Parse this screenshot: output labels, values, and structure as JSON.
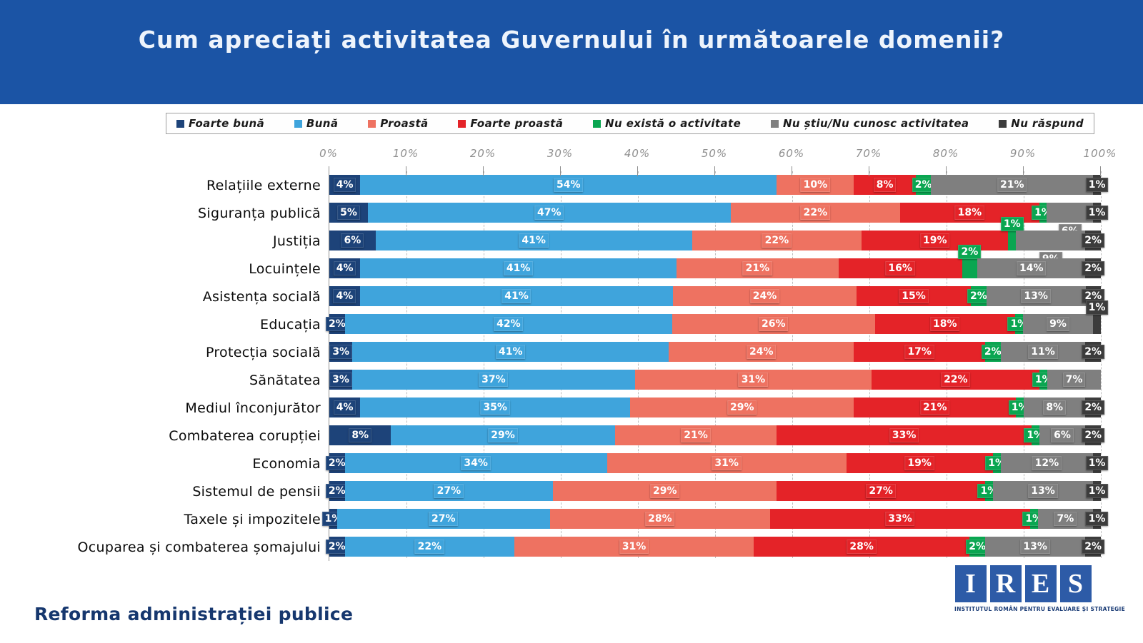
{
  "header": {
    "title": "Cum apreciați activitatea Guvernului în următoarele domenii?"
  },
  "chart_data": {
    "type": "bar",
    "orientation": "horizontal",
    "stacked": true,
    "title": "Cum apreciați activitatea Guvernului în următoarele domenii?",
    "legend_position": "top",
    "grid": "dotted-vertical",
    "xlim": [
      0,
      100
    ],
    "x_ticks": [
      "0%",
      "10%",
      "20%",
      "30%",
      "40%",
      "50%",
      "60%",
      "70%",
      "80%",
      "90%",
      "100%"
    ],
    "series_names": [
      "Foarte bună",
      "Bună",
      "Proastă",
      "Foarte proastă",
      "Nu există o activitate",
      "Nu știu/Nu cunosc activitatea",
      "Nu răspund"
    ],
    "series_colors": [
      "#1d4379",
      "#3fa4dc",
      "#ee7261",
      "#e42328",
      "#0aa651",
      "#7f7f7f",
      "#3c3c3c"
    ],
    "categories": [
      "Relațiile externe",
      "Siguranța publică",
      "Justiția",
      "Locuințele",
      "Asistența socială",
      "Educația",
      "Protecția socială",
      "Sănătatea",
      "Mediul înconjurător",
      "Combaterea corupției",
      "Economia",
      "Sistemul de pensii",
      "Taxele și impozitele",
      "Ocuparea și combaterea șomajului"
    ],
    "values": [
      [
        4,
        54,
        10,
        8,
        2,
        21,
        1
      ],
      [
        5,
        47,
        22,
        18,
        1,
        6,
        1
      ],
      [
        6,
        41,
        22,
        19,
        1,
        9,
        2
      ],
      [
        4,
        41,
        21,
        16,
        2,
        14,
        2
      ],
      [
        4,
        41,
        24,
        15,
        2,
        13,
        2
      ],
      [
        2,
        42,
        26,
        18,
        1,
        9,
        1
      ],
      [
        3,
        41,
        24,
        17,
        2,
        11,
        2
      ],
      [
        3,
        37,
        31,
        22,
        1,
        7,
        0
      ],
      [
        4,
        35,
        29,
        21,
        1,
        8,
        2
      ],
      [
        8,
        29,
        21,
        33,
        1,
        6,
        2
      ],
      [
        2,
        34,
        31,
        19,
        1,
        12,
        1
      ],
      [
        2,
        27,
        29,
        27,
        1,
        13,
        1
      ],
      [
        1,
        27,
        28,
        33,
        1,
        7,
        1
      ],
      [
        2,
        22,
        31,
        28,
        2,
        13,
        2
      ]
    ],
    "label_offsets": [
      [
        null,
        null,
        null,
        null,
        null,
        null,
        null
      ],
      [
        null,
        null,
        null,
        null,
        null,
        "down",
        null
      ],
      [
        null,
        null,
        null,
        null,
        "up",
        "down",
        null
      ],
      [
        null,
        null,
        null,
        null,
        "up",
        null,
        null
      ],
      [
        null,
        null,
        null,
        null,
        null,
        null,
        null
      ],
      [
        null,
        null,
        null,
        null,
        null,
        null,
        "up"
      ],
      [
        null,
        null,
        null,
        null,
        null,
        null,
        null
      ],
      [
        null,
        null,
        null,
        null,
        null,
        null,
        null
      ],
      [
        null,
        null,
        null,
        null,
        null,
        null,
        null
      ],
      [
        null,
        null,
        null,
        null,
        null,
        null,
        null
      ],
      [
        null,
        null,
        null,
        null,
        null,
        null,
        null
      ],
      [
        null,
        null,
        null,
        null,
        null,
        null,
        null
      ],
      [
        null,
        null,
        null,
        null,
        null,
        null,
        null
      ],
      [
        null,
        null,
        null,
        null,
        null,
        null,
        null
      ]
    ]
  },
  "footer": {
    "note": "Reforma administrației publice",
    "logo_letters": [
      "I",
      "R",
      "E",
      "S"
    ],
    "logo_caption": "INSTITUTUL ROMÂN PENTRU EVALUARE ȘI STRATEGIE"
  }
}
